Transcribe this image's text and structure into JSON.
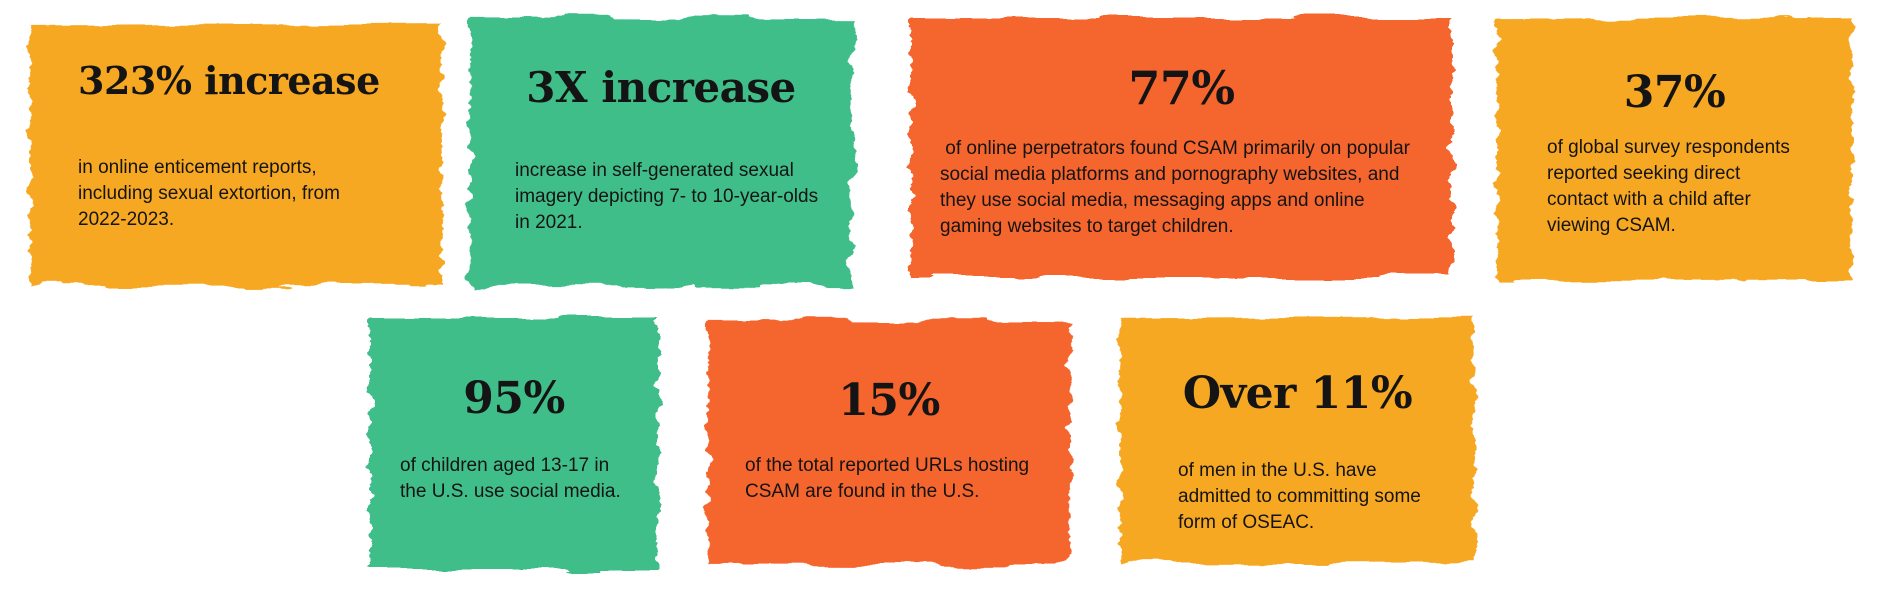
{
  "page": {
    "type": "infographic",
    "topic": "Online child safety / CSAM statistics",
    "background_color": "#ffffff",
    "text_color": "#141414"
  },
  "colors": {
    "yellow": "#F7A823",
    "green": "#3FBE8A",
    "orange": "#F5652E"
  },
  "cards": [
    {
      "headline": "323% increase",
      "body": "in online enticement reports,\nincluding sexual extortion, from\n2022-2023.",
      "color_name": "yellow",
      "color_hex": "#F7A823"
    },
    {
      "headline": "3X increase",
      "body": "increase in self-generated sexual\nimagery depicting 7- to 10-year-olds\nin 2021.",
      "color_name": "green",
      "color_hex": "#3FBE8A"
    },
    {
      "headline": "77%",
      "body": " of online perpetrators found CSAM primarily on popular\nsocial media platforms and pornography websites, and\nthey use social media, messaging apps and online\ngaming websites to target children.",
      "color_name": "orange",
      "color_hex": "#F5652E"
    },
    {
      "headline": "37%",
      "body": "of global survey respondents\nreported seeking direct\ncontact with a child after\nviewing CSAM.",
      "color_name": "yellow",
      "color_hex": "#F7A823"
    },
    {
      "headline": "95%",
      "body": "of children aged 13-17 in\nthe U.S. use social media.",
      "color_name": "green",
      "color_hex": "#3FBE8A"
    },
    {
      "headline": "15%",
      "body": "of the total reported URLs hosting\nCSAM are found in the U.S.",
      "color_name": "orange",
      "color_hex": "#F5652E"
    },
    {
      "headline": "Over 11%",
      "body": "of men in the U.S. have\nadmitted to committing some\nform of OSEAC.",
      "color_name": "yellow",
      "color_hex": "#F7A823"
    }
  ]
}
